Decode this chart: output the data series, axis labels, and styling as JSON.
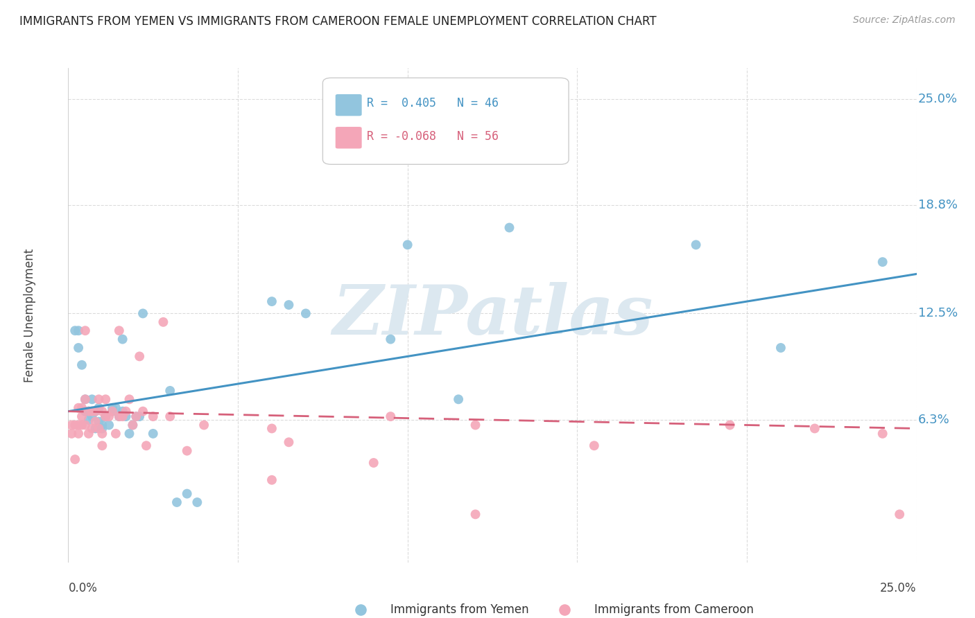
{
  "title": "IMMIGRANTS FROM YEMEN VS IMMIGRANTS FROM CAMEROON FEMALE UNEMPLOYMENT CORRELATION CHART",
  "source": "Source: ZipAtlas.com",
  "ylabel": "Female Unemployment",
  "y_tick_vals": [
    0.063,
    0.125,
    0.188,
    0.25
  ],
  "y_tick_labels": [
    "6.3%",
    "12.5%",
    "18.8%",
    "25.0%"
  ],
  "xmin": 0.0,
  "xmax": 0.25,
  "ymin": -0.02,
  "ymax": 0.268,
  "color_yemen": "#92c5de",
  "color_cameroon": "#f4a6b8",
  "color_yemen_line": "#4393c3",
  "color_cameroon_line": "#d6607a",
  "watermark_text": "ZIPatlas",
  "watermark_color": "#dce8f0",
  "yemen_scatter_x": [
    0.002,
    0.003,
    0.003,
    0.004,
    0.005,
    0.005,
    0.006,
    0.006,
    0.007,
    0.007,
    0.008,
    0.008,
    0.009,
    0.009,
    0.01,
    0.01,
    0.011,
    0.011,
    0.012,
    0.013,
    0.013,
    0.014,
    0.015,
    0.016,
    0.016,
    0.017,
    0.018,
    0.019,
    0.02,
    0.021,
    0.022,
    0.025,
    0.03,
    0.032,
    0.035,
    0.038,
    0.06,
    0.065,
    0.07,
    0.095,
    0.1,
    0.115,
    0.13,
    0.185,
    0.21,
    0.24
  ],
  "yemen_scatter_y": [
    0.115,
    0.115,
    0.105,
    0.095,
    0.075,
    0.068,
    0.063,
    0.068,
    0.065,
    0.075,
    0.058,
    0.068,
    0.062,
    0.07,
    0.058,
    0.06,
    0.065,
    0.065,
    0.06,
    0.07,
    0.068,
    0.07,
    0.065,
    0.068,
    0.11,
    0.065,
    0.055,
    0.06,
    0.065,
    0.065,
    0.125,
    0.055,
    0.08,
    0.015,
    0.02,
    0.015,
    0.132,
    0.13,
    0.125,
    0.11,
    0.165,
    0.075,
    0.175,
    0.165,
    0.105,
    0.155
  ],
  "cameroon_scatter_x": [
    0.001,
    0.001,
    0.002,
    0.002,
    0.003,
    0.003,
    0.003,
    0.004,
    0.004,
    0.004,
    0.005,
    0.005,
    0.006,
    0.006,
    0.007,
    0.007,
    0.008,
    0.008,
    0.009,
    0.009,
    0.01,
    0.01,
    0.011,
    0.011,
    0.012,
    0.013,
    0.014,
    0.015,
    0.015,
    0.016,
    0.017,
    0.018,
    0.019,
    0.02,
    0.021,
    0.022,
    0.023,
    0.025,
    0.028,
    0.03,
    0.035,
    0.04,
    0.06,
    0.065,
    0.09,
    0.095,
    0.12,
    0.155,
    0.195,
    0.22,
    0.24,
    0.245,
    0.12,
    0.06,
    0.01,
    0.005
  ],
  "cameroon_scatter_y": [
    0.06,
    0.055,
    0.06,
    0.04,
    0.055,
    0.06,
    0.07,
    0.06,
    0.065,
    0.07,
    0.06,
    0.075,
    0.055,
    0.068,
    0.058,
    0.068,
    0.062,
    0.068,
    0.058,
    0.075,
    0.055,
    0.068,
    0.075,
    0.065,
    0.065,
    0.068,
    0.055,
    0.115,
    0.065,
    0.065,
    0.068,
    0.075,
    0.06,
    0.065,
    0.1,
    0.068,
    0.048,
    0.065,
    0.12,
    0.065,
    0.045,
    0.06,
    0.058,
    0.05,
    0.038,
    0.065,
    0.06,
    0.048,
    0.06,
    0.058,
    0.055,
    0.008,
    0.008,
    0.028,
    0.048,
    0.115
  ],
  "yemen_trendline_x": [
    0.0,
    0.25
  ],
  "yemen_trendline_y": [
    0.068,
    0.148
  ],
  "cameroon_trendline_x": [
    0.0,
    0.25
  ],
  "cameroon_trendline_y": [
    0.068,
    0.058
  ],
  "grid_color": "#cccccc",
  "background_color": "#ffffff",
  "title_fontsize": 12,
  "source_fontsize": 10,
  "legend_r1_text": "R =  0.405",
  "legend_n1_text": "N = 46",
  "legend_r2_text": "R = -0.068",
  "legend_n2_text": "N = 56",
  "legend_r1_color": "#4393c3",
  "legend_r2_color": "#d6607a",
  "legend_n_color": "#333333"
}
